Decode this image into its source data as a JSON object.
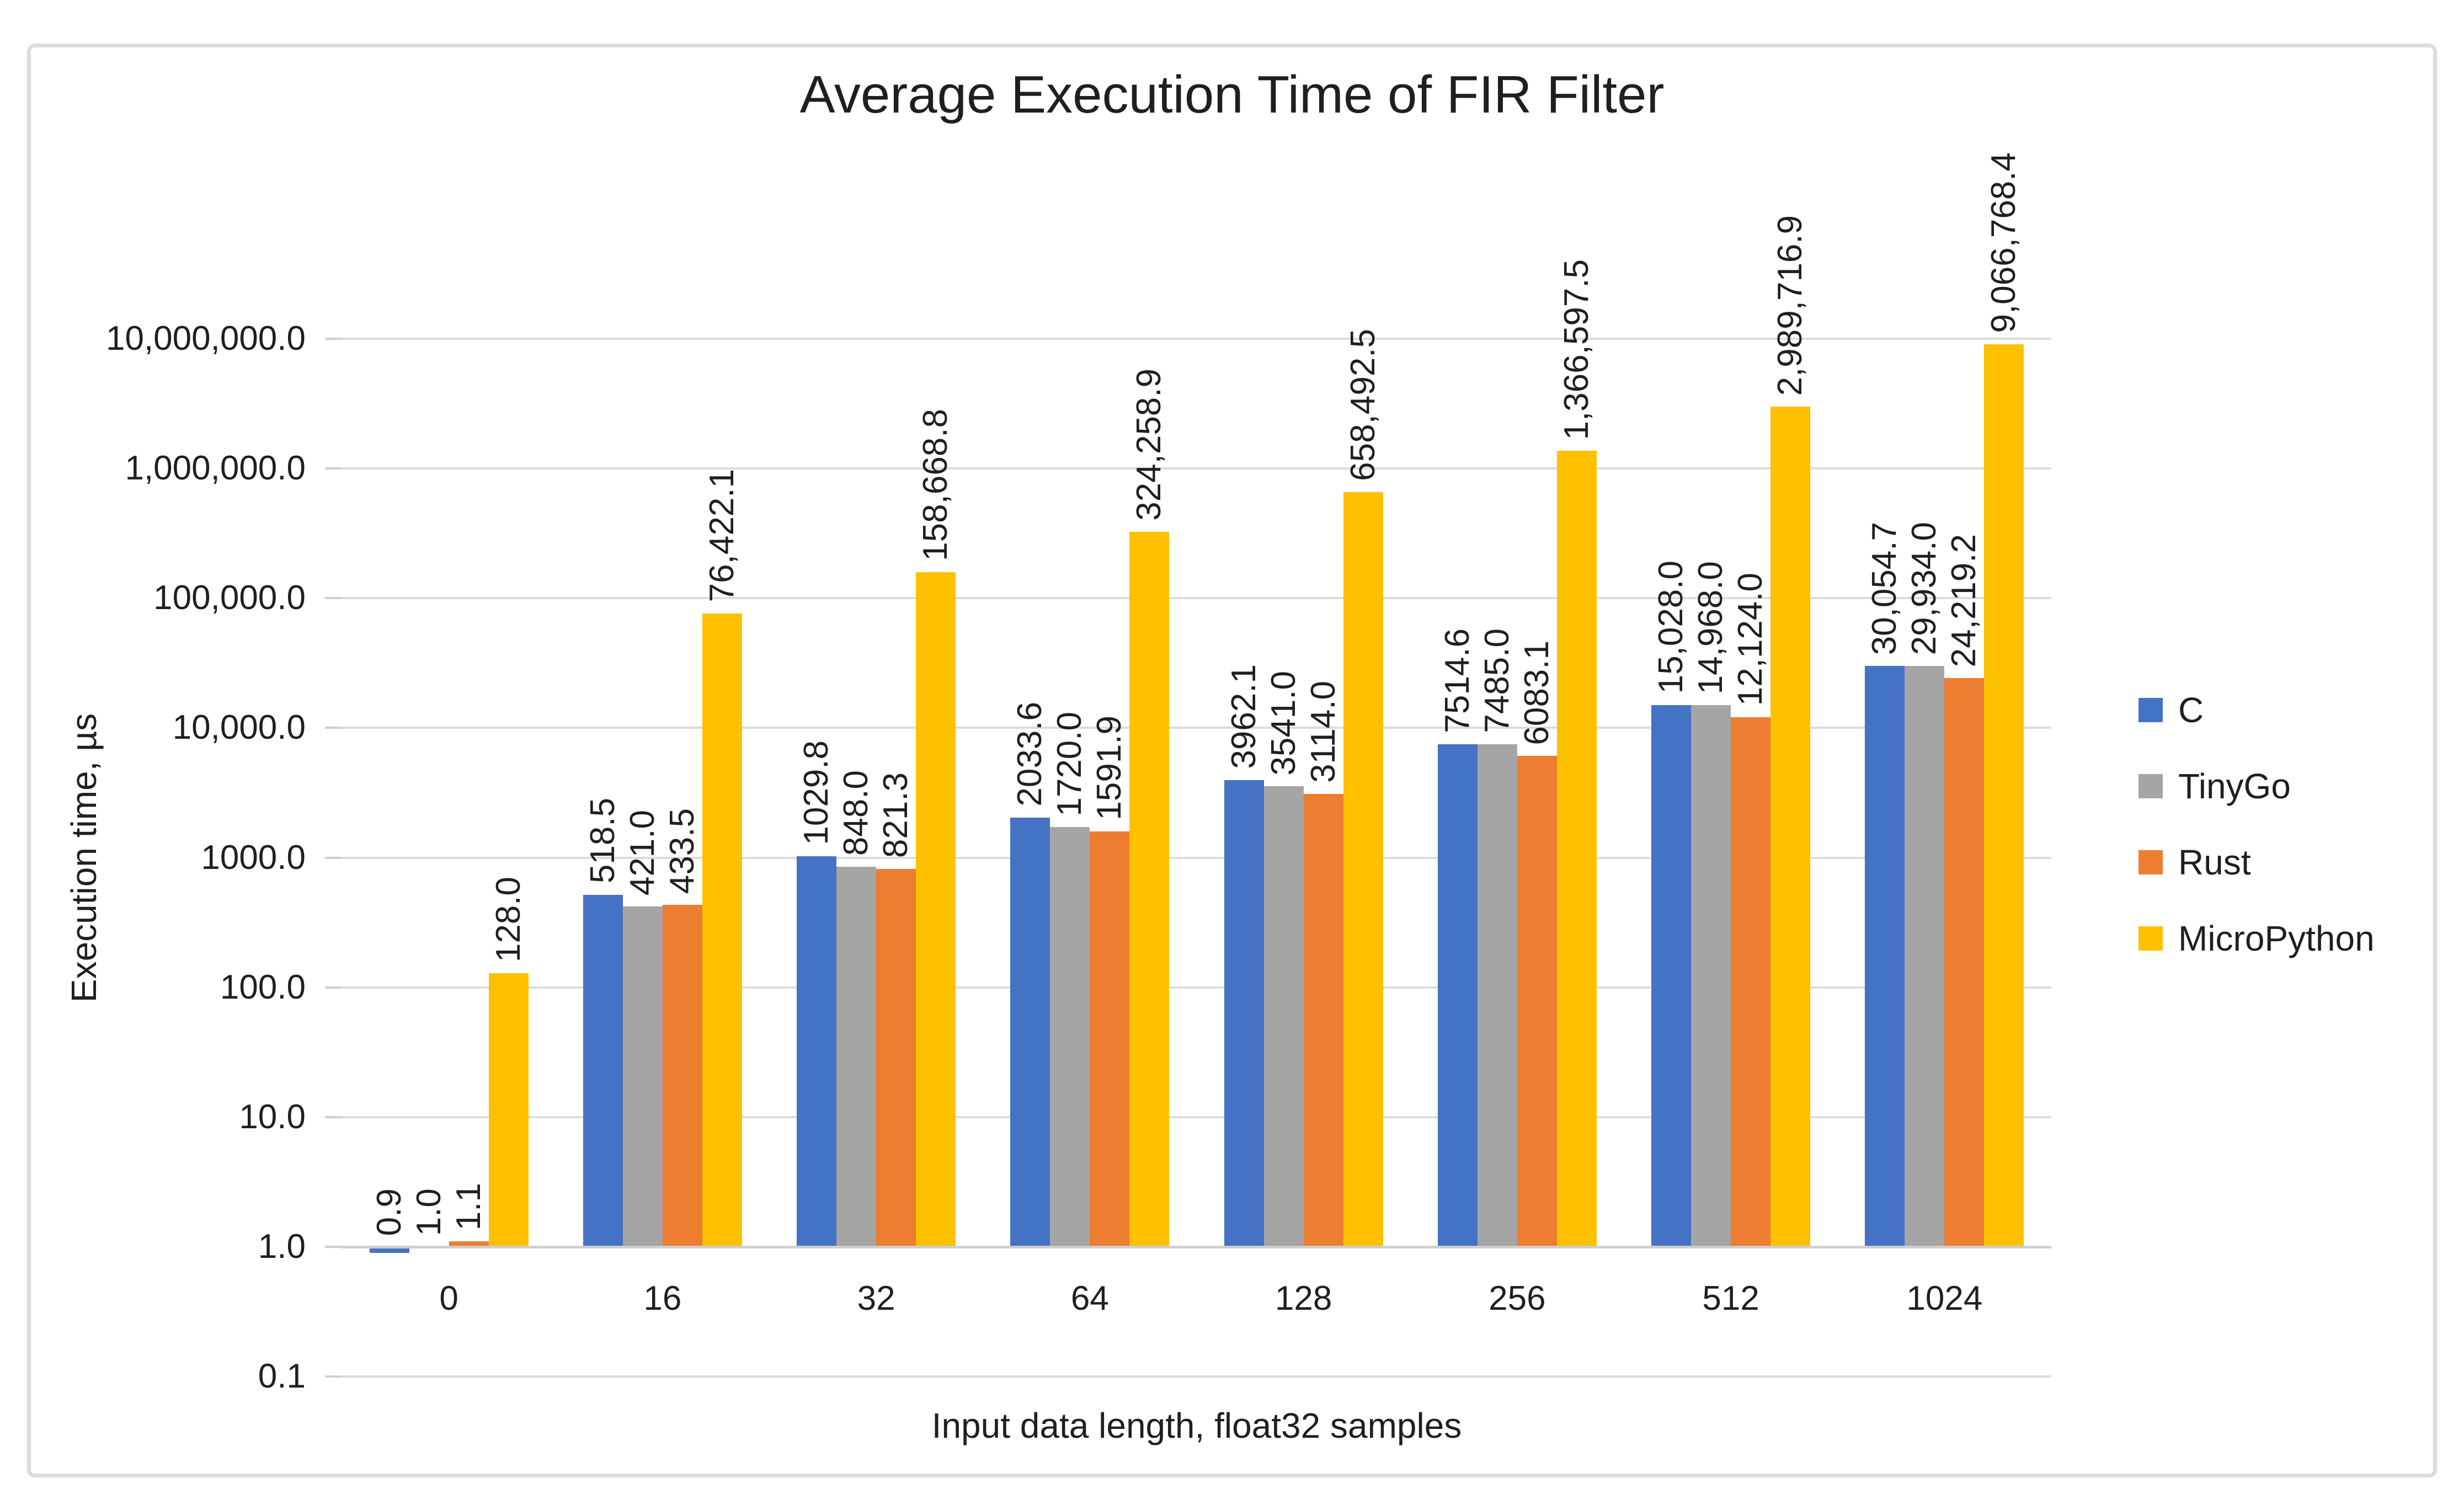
{
  "chart_data": {
    "type": "bar",
    "title": "Average Execution Time of FIR Filter",
    "xlabel": "Input data length, float32 samples",
    "ylabel": "Execution time, µs",
    "y_scale": "log10",
    "ylim": [
      0.1,
      10000000
    ],
    "baseline_value": 1.0,
    "grid": true,
    "legend_position": "right",
    "y_ticks": [
      "10,000,000.0",
      "1,000,000.0",
      "100,000.0",
      "10,000.0",
      "1000.0",
      "100.0",
      "10.0",
      "1.0",
      "0.1"
    ],
    "categories": [
      "0",
      "16",
      "32",
      "64",
      "128",
      "256",
      "512",
      "1024"
    ],
    "series": [
      {
        "name": "C",
        "color": "#4472C4",
        "values": [
          0.9,
          518.5,
          1029.8,
          2033.6,
          3962.1,
          7514.6,
          15028.0,
          30054.7
        ],
        "labels": [
          "0.9",
          "518.5",
          "1029.8",
          "2033.6",
          "3962.1",
          "7514.6",
          "15,028.0",
          "30,054.7"
        ]
      },
      {
        "name": "TinyGo",
        "color": "#A5A5A5",
        "values": [
          1.0,
          421.0,
          848.0,
          1720.0,
          3541.0,
          7485.0,
          14968.0,
          29934.0
        ],
        "labels": [
          "1.0",
          "421.0",
          "848.0",
          "1720.0",
          "3541.0",
          "7485.0",
          "14,968.0",
          "29,934.0"
        ]
      },
      {
        "name": "Rust",
        "color": "#ED7D31",
        "values": [
          1.1,
          433.5,
          821.3,
          1591.9,
          3114.0,
          6083.1,
          12124.0,
          24219.2
        ],
        "labels": [
          "1.1",
          "433.5",
          "821.3",
          "1591.9",
          "3114.0",
          "6083.1",
          "12,124.0",
          "24,219.2"
        ]
      },
      {
        "name": "MicroPython",
        "color": "#FFC000",
        "values": [
          128.0,
          76422.1,
          158668.8,
          324258.9,
          658492.5,
          1366597.5,
          2989716.9,
          9066768.4
        ],
        "labels": [
          "128.0",
          "76,422.1",
          "158,668.8",
          "324,258.9",
          "658,492.5",
          "1,366,597.5",
          "2,989,716.9",
          "9,066,768.4"
        ]
      }
    ]
  }
}
